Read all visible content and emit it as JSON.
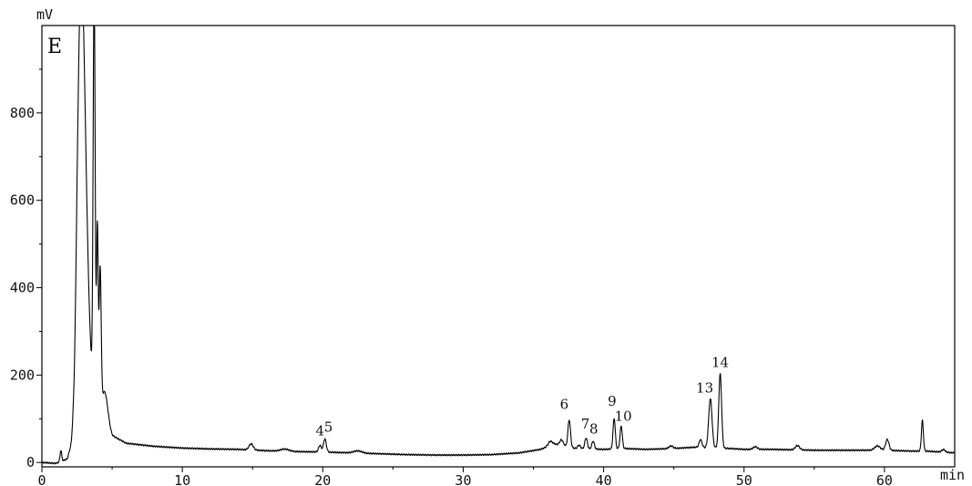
{
  "chart_data": {
    "type": "line",
    "panel_label": "E",
    "y_unit": "mV",
    "x_unit": "min",
    "xlabel": "",
    "ylabel": "",
    "xlim": [
      0,
      65
    ],
    "ylim": [
      -10,
      1000
    ],
    "x_ticks": [
      0,
      10,
      20,
      30,
      40,
      50,
      60
    ],
    "y_ticks": [
      0,
      200,
      400,
      600,
      800
    ],
    "grid": false,
    "legend": "none",
    "line_color": "#000000",
    "baseline": [
      [
        0,
        0
      ],
      [
        1.0,
        -2
      ],
      [
        1.8,
        8
      ],
      [
        2.1,
        40
      ],
      [
        2.3,
        110
      ],
      [
        2.5,
        250
      ],
      [
        5,
        62
      ],
      [
        6,
        44
      ],
      [
        8,
        37
      ],
      [
        10,
        33
      ],
      [
        12,
        31
      ],
      [
        14,
        30
      ],
      [
        16,
        27
      ],
      [
        18,
        25
      ],
      [
        20,
        24
      ],
      [
        22,
        22
      ],
      [
        24,
        20
      ],
      [
        26,
        18
      ],
      [
        28,
        17
      ],
      [
        30,
        17
      ],
      [
        32,
        18
      ],
      [
        34,
        22
      ],
      [
        35.5,
        30
      ],
      [
        36.5,
        42
      ],
      [
        37,
        40
      ],
      [
        38,
        32
      ],
      [
        40,
        30
      ],
      [
        41.5,
        32
      ],
      [
        43,
        30
      ],
      [
        45,
        32
      ],
      [
        46.5,
        35
      ],
      [
        49,
        32
      ],
      [
        50,
        30
      ],
      [
        52,
        30
      ],
      [
        55,
        28
      ],
      [
        58,
        28
      ],
      [
        60,
        28
      ],
      [
        62,
        26
      ],
      [
        63,
        26
      ],
      [
        64,
        24
      ],
      [
        65,
        22
      ]
    ],
    "peaks": [
      {
        "x": 1.35,
        "h": 25,
        "w": 0.06
      },
      {
        "x": 2.75,
        "h": 690,
        "w": 0.22
      },
      {
        "x": 3.05,
        "h": 380,
        "w": 0.25
      },
      {
        "x": 3.72,
        "h": 930,
        "w": 0.07
      },
      {
        "x": 3.95,
        "h": 400,
        "w": 0.06
      },
      {
        "x": 4.15,
        "h": 310,
        "w": 0.07
      },
      {
        "x": 4.5,
        "h": 60,
        "w": 0.2
      },
      {
        "x": 14.9,
        "h": 14,
        "w": 0.15
      },
      {
        "x": 17.3,
        "h": 5,
        "w": 0.3
      },
      {
        "x": 19.8,
        "h": 15,
        "w": 0.1
      },
      {
        "x": 20.15,
        "h": 30,
        "w": 0.1
      },
      {
        "x": 22.5,
        "h": 5,
        "w": 0.3
      },
      {
        "x": 36.2,
        "h": 10,
        "w": 0.15
      },
      {
        "x": 37.0,
        "h": 12,
        "w": 0.12
      },
      {
        "x": 37.55,
        "h": 62,
        "w": 0.09
      },
      {
        "x": 38.25,
        "h": 8,
        "w": 0.1
      },
      {
        "x": 38.75,
        "h": 25,
        "w": 0.09
      },
      {
        "x": 39.25,
        "h": 18,
        "w": 0.09
      },
      {
        "x": 40.75,
        "h": 70,
        "w": 0.08
      },
      {
        "x": 41.25,
        "h": 52,
        "w": 0.08
      },
      {
        "x": 44.8,
        "h": 6,
        "w": 0.15
      },
      {
        "x": 46.9,
        "h": 18,
        "w": 0.1
      },
      {
        "x": 47.6,
        "h": 112,
        "w": 0.12
      },
      {
        "x": 48.3,
        "h": 170,
        "w": 0.1
      },
      {
        "x": 50.8,
        "h": 6,
        "w": 0.15
      },
      {
        "x": 53.8,
        "h": 10,
        "w": 0.15
      },
      {
        "x": 59.5,
        "h": 10,
        "w": 0.2
      },
      {
        "x": 60.2,
        "h": 25,
        "w": 0.12
      },
      {
        "x": 62.7,
        "h": 70,
        "w": 0.07
      },
      {
        "x": 64.2,
        "h": 6,
        "w": 0.12
      }
    ],
    "peak_labels": [
      {
        "label": "4",
        "x": 19.8,
        "y": 62
      },
      {
        "label": "5",
        "x": 20.4,
        "y": 70
      },
      {
        "label": "6",
        "x": 37.2,
        "y": 122
      },
      {
        "label": "7",
        "x": 38.7,
        "y": 78
      },
      {
        "label": "8",
        "x": 39.3,
        "y": 66
      },
      {
        "label": "9",
        "x": 40.6,
        "y": 130
      },
      {
        "label": "10",
        "x": 41.4,
        "y": 95
      },
      {
        "label": "13",
        "x": 47.2,
        "y": 160
      },
      {
        "label": "14",
        "x": 48.3,
        "y": 218
      }
    ]
  }
}
